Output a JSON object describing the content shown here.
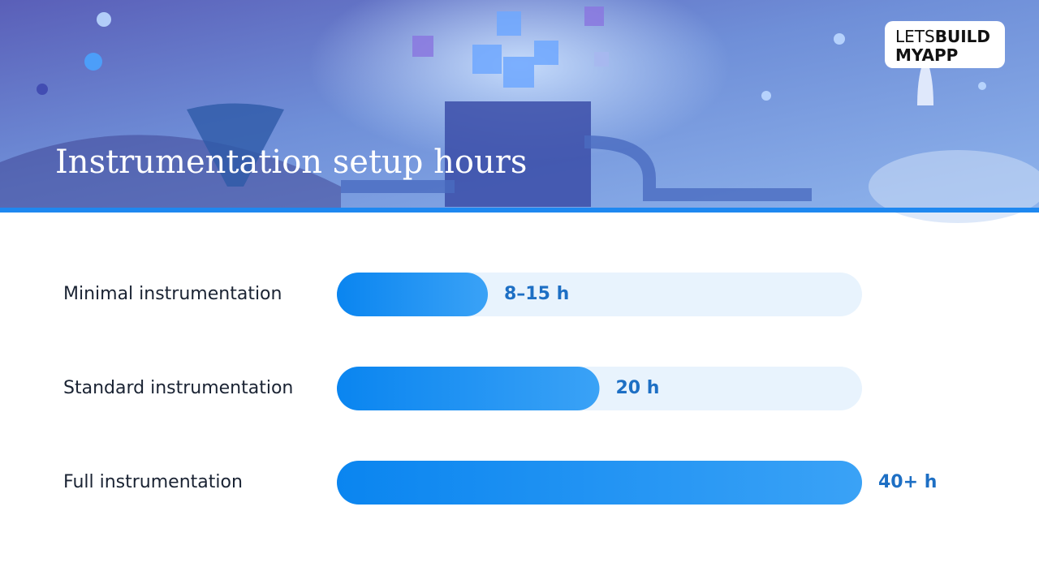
{
  "chart_data": {
    "type": "bar",
    "orientation": "horizontal",
    "title": "Instrumentation setup hours",
    "categories": [
      "Minimal instrumentation",
      "Standard instrumentation",
      "Full instrumentation"
    ],
    "values": [
      11.5,
      20,
      40
    ],
    "value_labels": [
      "8–15 h",
      "20 h",
      "40+ h"
    ],
    "xlim": [
      0,
      40
    ],
    "color": "#0a85f0",
    "track_color": "#e8f3fd"
  },
  "logo": {
    "part1": "LETS",
    "part2": "BUILD",
    "part3": "MYAPP"
  }
}
